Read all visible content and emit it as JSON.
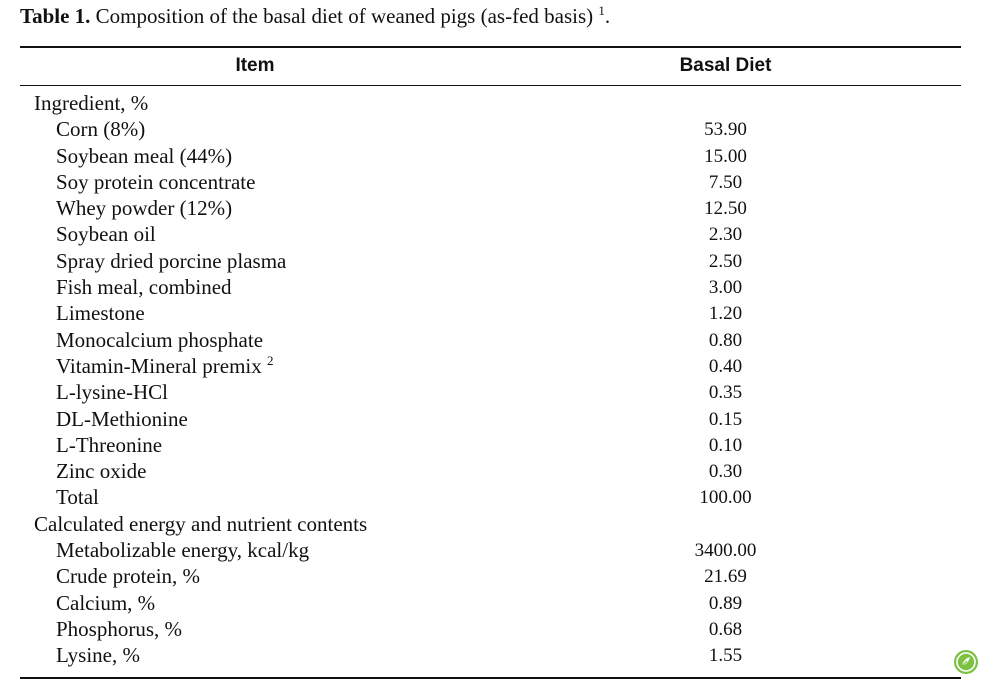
{
  "caption": {
    "label": "Table 1.",
    "text": "Composition of the basal diet of weaned pigs (as-fed basis)",
    "footnote_mark": "1",
    "end": "."
  },
  "headers": {
    "item": "Item",
    "basal_diet": "Basal Diet"
  },
  "rows": [
    {
      "name": "Ingredient, %",
      "value": "",
      "section": true
    },
    {
      "name": "Corn (8%)",
      "value": "53.90"
    },
    {
      "name": "Soybean meal (44%)",
      "value": "15.00"
    },
    {
      "name": "Soy protein concentrate",
      "value": "7.50"
    },
    {
      "name": "Whey powder (12%)",
      "value": "12.50"
    },
    {
      "name": "Soybean oil",
      "value": "2.30"
    },
    {
      "name": "Spray dried porcine plasma",
      "value": "2.50"
    },
    {
      "name": "Fish meal, combined",
      "value": "3.00"
    },
    {
      "name": "Limestone",
      "value": "1.20"
    },
    {
      "name": "Monocalcium phosphate",
      "value": "0.80"
    },
    {
      "name": "Vitamin-Mineral premix",
      "value": "0.40",
      "sup": "2"
    },
    {
      "name": "L-lysine-HCl",
      "value": "0.35"
    },
    {
      "name": "DL-Methionine",
      "value": "0.15"
    },
    {
      "name": "L-Threonine",
      "value": "0.10"
    },
    {
      "name": "Zinc oxide",
      "value": "0.30"
    },
    {
      "name": "Total",
      "value": "100.00"
    },
    {
      "name": "Calculated energy and nutrient contents",
      "value": "",
      "section": true
    },
    {
      "name": "Metabolizable energy, kcal/kg",
      "value": "3400.00"
    },
    {
      "name": "Crude protein, %",
      "value": "21.69"
    },
    {
      "name": "Calcium, %",
      "value": "0.89"
    },
    {
      "name": "Phosphorus, %",
      "value": "0.68"
    },
    {
      "name": "Lysine, %",
      "value": "1.55"
    }
  ]
}
